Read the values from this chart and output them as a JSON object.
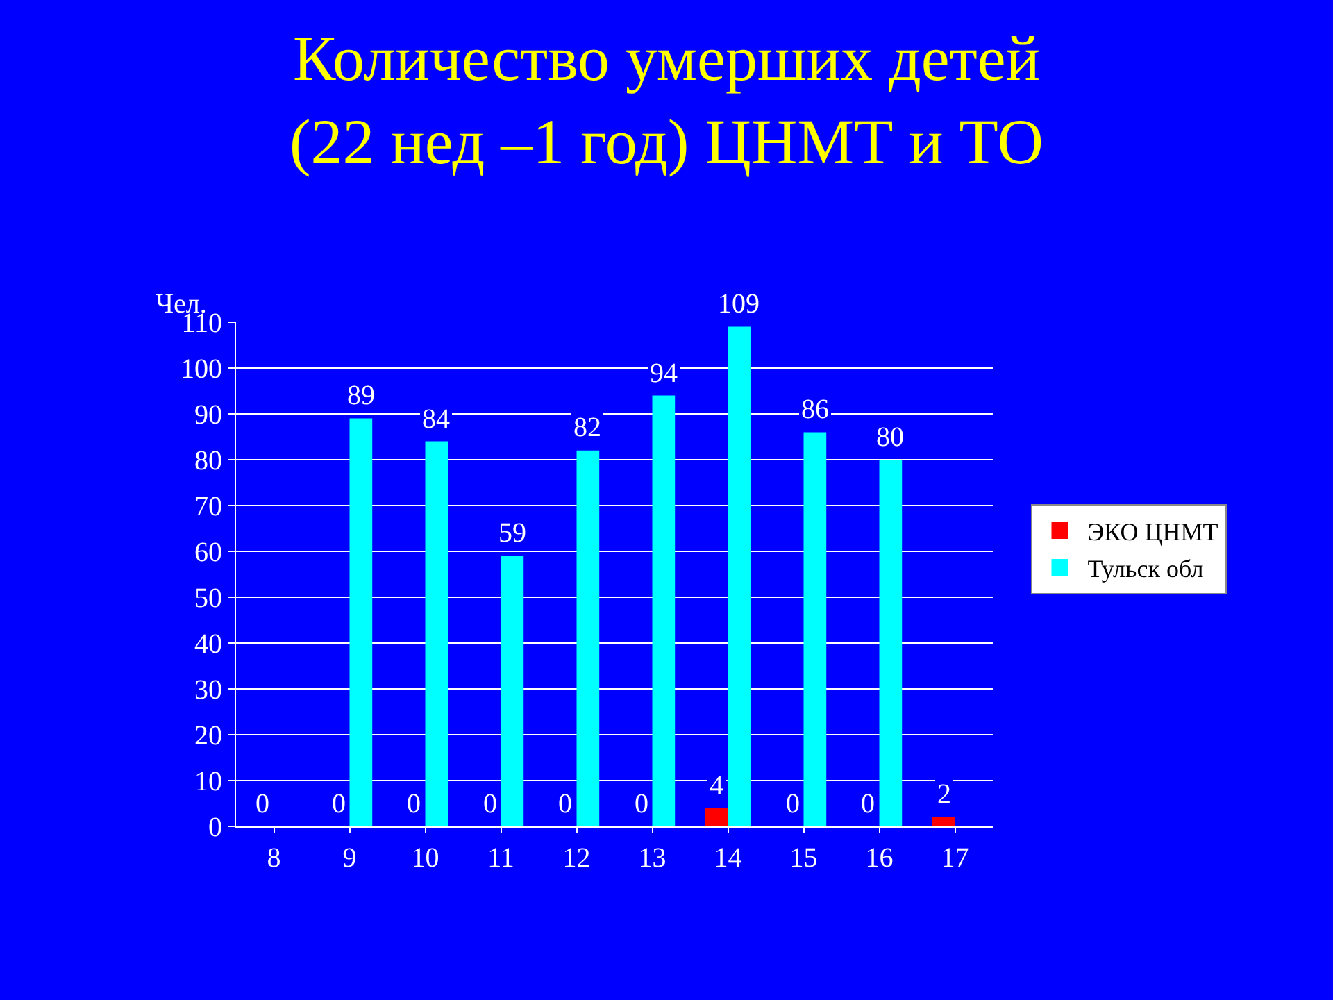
{
  "chart_data": {
    "type": "bar",
    "title": "Количество умерших детей\n(22 нед –1 год) ЦНМТ и ТО",
    "ylabel": "Чел.",
    "categories": [
      "8",
      "9",
      "10",
      "11",
      "12",
      "13",
      "14",
      "15",
      "16",
      "17"
    ],
    "series": [
      {
        "name": "ЭКО ЦНМТ",
        "color": "#ff0000",
        "values": [
          0,
          0,
          0,
          0,
          0,
          0,
          4,
          0,
          0,
          2
        ]
      },
      {
        "name": "Тульск обл",
        "color": "#00ffff",
        "values": [
          null,
          89,
          84,
          59,
          82,
          94,
          109,
          86,
          80,
          null
        ]
      }
    ],
    "ylim": [
      0,
      110
    ],
    "yticks": [
      0,
      10,
      20,
      30,
      40,
      50,
      60,
      70,
      80,
      90,
      100,
      110
    ],
    "grid": "y",
    "legend": "right",
    "data_labels": true
  }
}
